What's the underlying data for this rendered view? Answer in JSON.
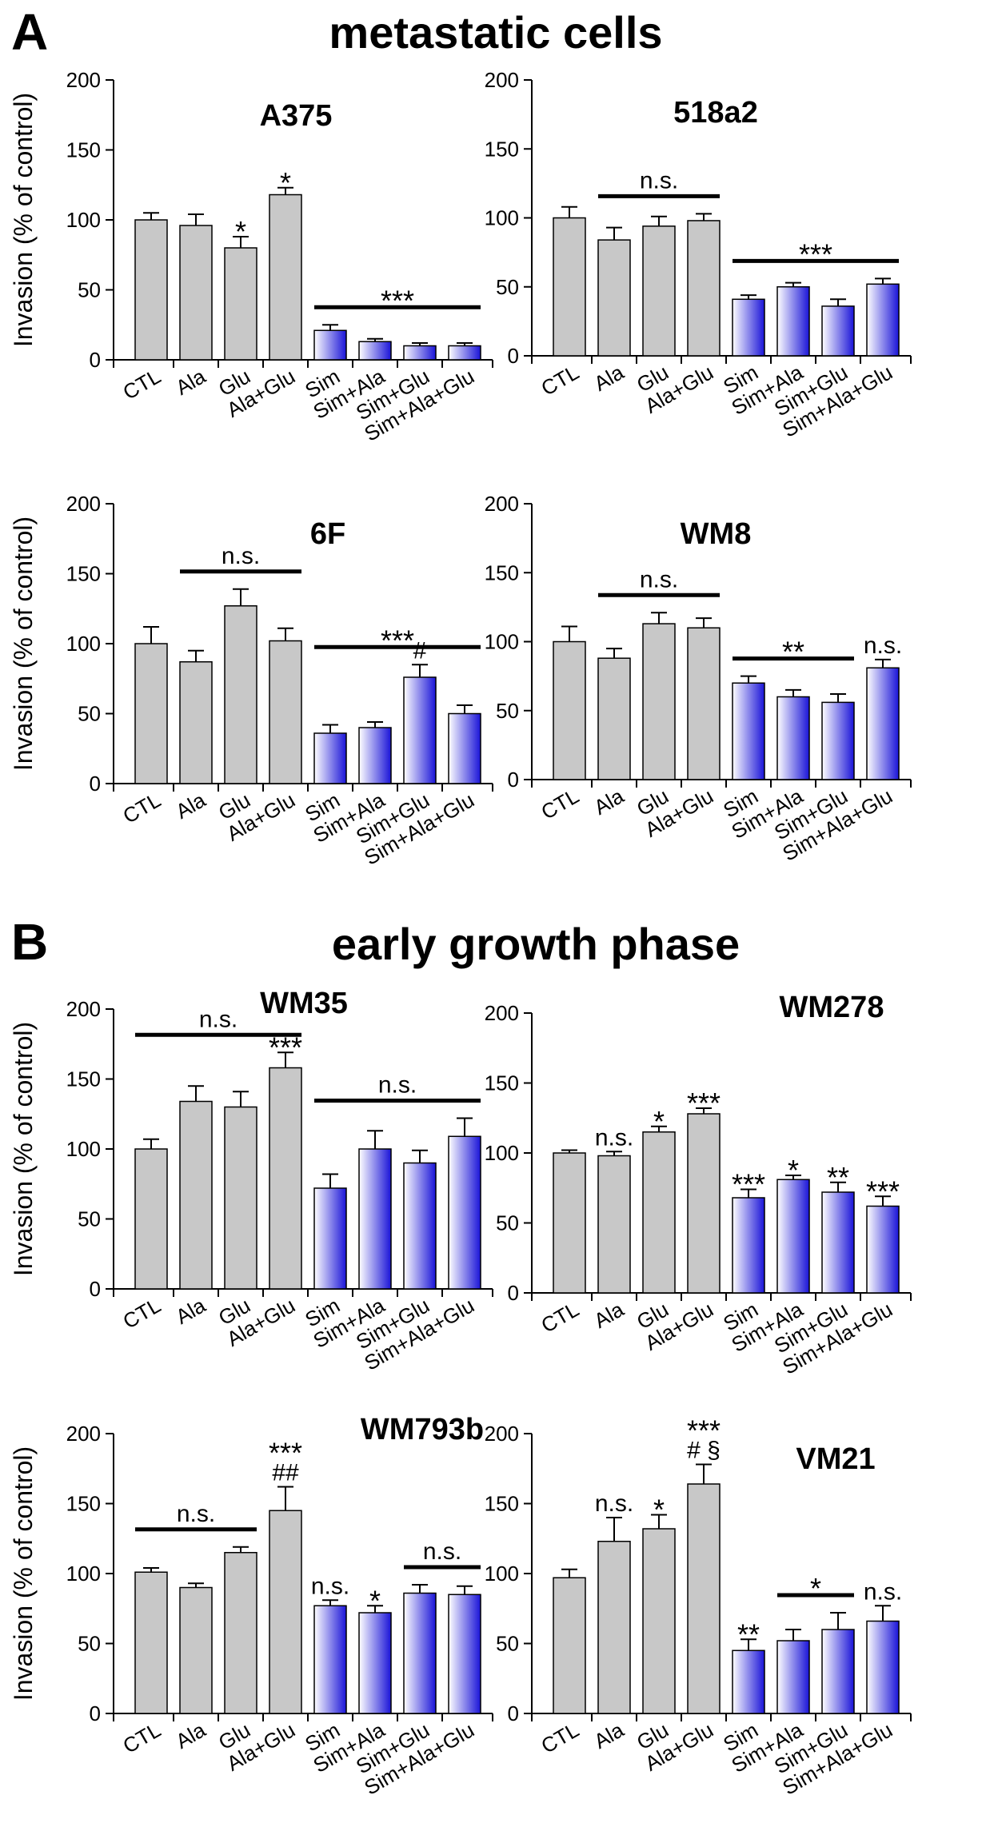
{
  "sections": [
    {
      "letter": "A",
      "title": "metastatic cells"
    },
    {
      "letter": "B",
      "title": "early growth phase"
    }
  ],
  "colors": {
    "control_bar": "#c8c8c8",
    "sim_bar_dark": "#1a14d8",
    "sim_bar_light": "#ffffff",
    "axis": "#000000"
  },
  "chart_data": [
    {
      "type": "bar",
      "title": "A375",
      "ylabel": "Invasion (% of control)",
      "categories": [
        "CTL",
        "Ala",
        "Glu",
        "Ala+Glu",
        "Sim",
        "Sim+Ala",
        "Sim+Glu",
        "Sim+Ala+Glu"
      ],
      "values": [
        100,
        96,
        80,
        118,
        21,
        13,
        10,
        10
      ],
      "errors": [
        5,
        8,
        8,
        5,
        4,
        2,
        2,
        2
      ],
      "ylim": [
        0,
        200
      ],
      "yticks": [
        0,
        50,
        100,
        150,
        200
      ],
      "marks": [
        "",
        "",
        "*",
        "*",
        "",
        "",
        "",
        ""
      ],
      "brackets": [
        {
          "from": 4,
          "to": 7,
          "label": "***"
        }
      ]
    },
    {
      "type": "bar",
      "title": "518a2",
      "ylabel": "",
      "categories": [
        "CTL",
        "Ala",
        "Glu",
        "Ala+Glu",
        "Sim",
        "Sim+Ala",
        "Sim+Glu",
        "Sim+Ala+Glu"
      ],
      "values": [
        100,
        84,
        94,
        98,
        41,
        50,
        36,
        52
      ],
      "errors": [
        8,
        9,
        7,
        5,
        3,
        3,
        5,
        4
      ],
      "ylim": [
        0,
        200
      ],
      "yticks": [
        0,
        50,
        100,
        150,
        200
      ],
      "marks": [
        "",
        "",
        "",
        "",
        "",
        "",
        "",
        ""
      ],
      "brackets": [
        {
          "from": 1,
          "to": 3,
          "label": "n.s."
        },
        {
          "from": 4,
          "to": 7,
          "label": "***"
        }
      ]
    },
    {
      "type": "bar",
      "title": "6F",
      "ylabel": "Invasion (% of control)",
      "categories": [
        "CTL",
        "Ala",
        "Glu",
        "Ala+Glu",
        "Sim",
        "Sim+Ala",
        "Sim+Glu",
        "Sim+Ala+Glu"
      ],
      "values": [
        100,
        87,
        127,
        102,
        36,
        40,
        76,
        50
      ],
      "errors": [
        12,
        8,
        12,
        9,
        6,
        4,
        9,
        6
      ],
      "ylim": [
        0,
        200
      ],
      "yticks": [
        0,
        50,
        100,
        150,
        200
      ],
      "marks": [
        "",
        "",
        "",
        "",
        "",
        "",
        "#",
        ""
      ],
      "brackets": [
        {
          "from": 1,
          "to": 3,
          "label": "n.s."
        },
        {
          "from": 4,
          "to": 7,
          "label": "***"
        }
      ]
    },
    {
      "type": "bar",
      "title": "WM8",
      "ylabel": "",
      "categories": [
        "CTL",
        "Ala",
        "Glu",
        "Ala+Glu",
        "Sim",
        "Sim+Ala",
        "Sim+Glu",
        "Sim+Ala+Glu"
      ],
      "values": [
        100,
        88,
        113,
        110,
        70,
        60,
        56,
        81
      ],
      "errors": [
        11,
        7,
        8,
        7,
        5,
        5,
        6,
        6
      ],
      "ylim": [
        0,
        200
      ],
      "yticks": [
        0,
        50,
        100,
        150,
        200
      ],
      "marks": [
        "",
        "",
        "",
        "",
        "",
        "",
        "",
        "n.s."
      ],
      "brackets": [
        {
          "from": 1,
          "to": 3,
          "label": "n.s."
        },
        {
          "from": 4,
          "to": 6,
          "label": "**"
        }
      ]
    },
    {
      "type": "bar",
      "title": "WM35",
      "ylabel": "Invasion (% of control)",
      "categories": [
        "CTL",
        "Ala",
        "Glu",
        "Ala+Glu",
        "Sim",
        "Sim+Ala",
        "Sim+Glu",
        "Sim+Ala+Glu"
      ],
      "values": [
        100,
        134,
        130,
        158,
        72,
        100,
        90,
        109
      ],
      "errors": [
        7,
        11,
        11,
        11,
        10,
        13,
        9,
        13
      ],
      "ylim": [
        0,
        200
      ],
      "yticks": [
        0,
        50,
        100,
        150,
        200
      ],
      "marks": [
        "",
        "",
        "",
        "***",
        "",
        "",
        "",
        ""
      ],
      "brackets": [
        {
          "from": 0,
          "to": 3,
          "label": "n.s."
        },
        {
          "from": 4,
          "to": 7,
          "label": "n.s."
        }
      ]
    },
    {
      "type": "bar",
      "title": "WM278",
      "ylabel": "",
      "categories": [
        "CTL",
        "Ala",
        "Glu",
        "Ala+Glu",
        "Sim",
        "Sim+Ala",
        "Sim+Glu",
        "Sim+Ala+Glu"
      ],
      "values": [
        100,
        98,
        115,
        128,
        68,
        81,
        72,
        62
      ],
      "errors": [
        2,
        3,
        4,
        4,
        6,
        3,
        7,
        7
      ],
      "ylim": [
        0,
        200
      ],
      "yticks": [
        0,
        50,
        100,
        150,
        200
      ],
      "marks": [
        "",
        "n.s.",
        "*",
        "***",
        "***",
        "*",
        "**",
        "***"
      ],
      "brackets": []
    },
    {
      "type": "bar",
      "title": "WM793b",
      "ylabel": "Invasion (% of control)",
      "categories": [
        "CTL",
        "Ala",
        "Glu",
        "Ala+Glu",
        "Sim",
        "Sim+Ala",
        "Sim+Glu",
        "Sim+Ala+Glu"
      ],
      "values": [
        101,
        90,
        115,
        145,
        77,
        72,
        86,
        85
      ],
      "errors": [
        3,
        3,
        4,
        17,
        4,
        5,
        6,
        6
      ],
      "ylim": [
        0,
        200
      ],
      "yticks": [
        0,
        50,
        100,
        150,
        200
      ],
      "marks": [
        "",
        "",
        "",
        "***\n##",
        "n.s.",
        "*",
        "",
        ""
      ],
      "brackets": [
        {
          "from": 0,
          "to": 2,
          "label": "n.s."
        },
        {
          "from": 6,
          "to": 7,
          "label": "n.s."
        }
      ]
    },
    {
      "type": "bar",
      "title": "VM21",
      "ylabel": "",
      "categories": [
        "CTL",
        "Ala",
        "Glu",
        "Ala+Glu",
        "Sim",
        "Sim+Ala",
        "Sim+Glu",
        "Sim+Ala+Glu"
      ],
      "values": [
        97,
        123,
        132,
        164,
        45,
        52,
        60,
        66
      ],
      "errors": [
        6,
        17,
        10,
        14,
        8,
        8,
        12,
        11
      ],
      "ylim": [
        0,
        200
      ],
      "yticks": [
        0,
        50,
        100,
        150,
        200
      ],
      "marks": [
        "",
        "n.s.",
        "*",
        "***\n# §",
        "**",
        "",
        "",
        "n.s."
      ],
      "brackets": [
        {
          "from": 5,
          "to": 6,
          "label": "*"
        }
      ]
    }
  ]
}
